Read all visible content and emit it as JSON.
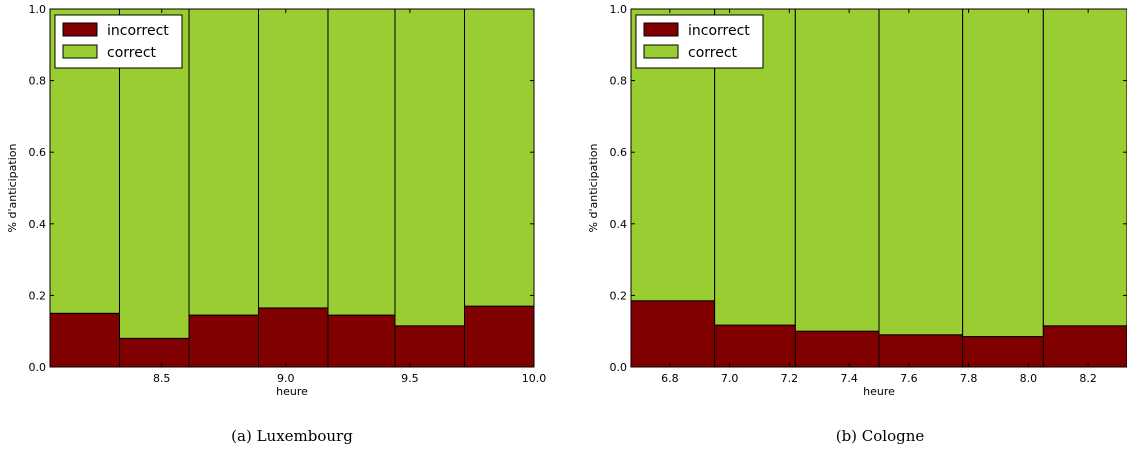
{
  "colors": {
    "incorrect": "#800000",
    "correct": "#9ACD32",
    "edge": "#000000"
  },
  "chart_data": [
    {
      "type": "bar",
      "stacked": true,
      "caption": "(a) Luxembourg",
      "xlabel": "heure",
      "ylabel": "% d'anticipation",
      "xlim": [
        8.05,
        10.0
      ],
      "ylim": [
        0.0,
        1.0
      ],
      "xticks": [
        8.5,
        9.0,
        9.5,
        10.0
      ],
      "xtick_labels": [
        "8.5",
        "9.0",
        "9.5",
        "10.0"
      ],
      "yticks": [
        0.0,
        0.2,
        0.4,
        0.6,
        0.8,
        1.0
      ],
      "ytick_labels": [
        "0.0",
        "0.2",
        "0.4",
        "0.6",
        "0.8",
        "1.0"
      ],
      "bins": [
        [
          8.05,
          8.33
        ],
        [
          8.33,
          8.61
        ],
        [
          8.61,
          8.89
        ],
        [
          8.89,
          9.17
        ],
        [
          9.17,
          9.44
        ],
        [
          9.44,
          9.72
        ],
        [
          9.72,
          10.0
        ]
      ],
      "series": [
        {
          "name": "incorrect",
          "values": [
            0.15,
            0.08,
            0.145,
            0.165,
            0.145,
            0.115,
            0.17
          ]
        },
        {
          "name": "correct",
          "values": [
            0.85,
            0.92,
            0.855,
            0.835,
            0.855,
            0.885,
            0.83
          ]
        }
      ],
      "legend_location": "top-left",
      "grid": false
    },
    {
      "type": "bar",
      "stacked": true,
      "caption": "(b) Cologne",
      "xlabel": "heure",
      "ylabel": "% d'anticipation",
      "xlim": [
        6.67,
        8.33
      ],
      "ylim": [
        0.0,
        1.0
      ],
      "xticks": [
        6.8,
        7.0,
        7.2,
        7.4,
        7.6,
        7.8,
        8.0,
        8.2
      ],
      "xtick_labels": [
        "6.8",
        "7.0",
        "7.2",
        "7.4",
        "7.6",
        "7.8",
        "8.0",
        "8.2"
      ],
      "yticks": [
        0.0,
        0.2,
        0.4,
        0.6,
        0.8,
        1.0
      ],
      "ytick_labels": [
        "0.0",
        "0.2",
        "0.4",
        "0.6",
        "0.8",
        "1.0"
      ],
      "bins": [
        [
          6.67,
          6.95
        ],
        [
          6.95,
          7.22
        ],
        [
          7.22,
          7.5
        ],
        [
          7.5,
          7.78
        ],
        [
          7.78,
          8.05
        ],
        [
          8.05,
          8.33
        ]
      ],
      "series": [
        {
          "name": "incorrect",
          "values": [
            0.185,
            0.117,
            0.1,
            0.09,
            0.085,
            0.115
          ]
        },
        {
          "name": "correct",
          "values": [
            0.815,
            0.883,
            0.9,
            0.91,
            0.915,
            0.885
          ]
        }
      ],
      "legend_location": "top-left",
      "grid": false
    }
  ]
}
